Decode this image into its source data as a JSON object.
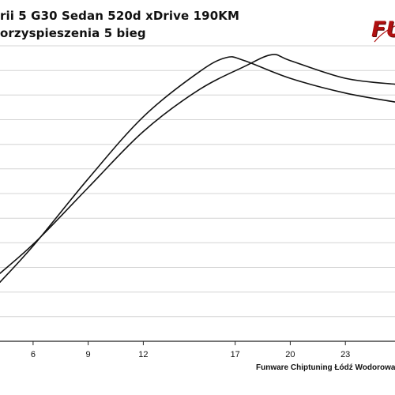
{
  "title": {
    "line1": "rii 5 G30 Sedan 520d xDrive 190KM",
    "line2": "orzyspieszenia 5 bieg"
  },
  "logo": {
    "text": "FU",
    "color": "#b01010"
  },
  "footer": {
    "text": "Funware Chiptuning Łódź Wodorowanie"
  },
  "chart_data": {
    "type": "line",
    "title": "",
    "xlabel": "",
    "ylabel": "",
    "xlim": [
      4.2,
      25.7
    ],
    "ylim": [
      0,
      10
    ],
    "x_ticks": [
      6,
      9,
      12,
      17,
      20,
      23
    ],
    "x_tick_labels": [
      "6",
      "9",
      "12",
      "17",
      "20",
      "23"
    ],
    "y_gridlines": 12,
    "grid": true,
    "legend": "none",
    "line_color": "#111111",
    "series": [
      {
        "values": [
          [
            4.2,
            2.0
          ],
          [
            6.1,
            3.3
          ],
          [
            9.0,
            5.5
          ],
          [
            12.0,
            7.6
          ],
          [
            15.0,
            9.1
          ],
          [
            16.5,
            9.6
          ],
          [
            17.5,
            9.5
          ],
          [
            20.0,
            8.9
          ],
          [
            23.0,
            8.4
          ],
          [
            25.7,
            8.1
          ]
        ]
      },
      {
        "values": [
          [
            4.2,
            2.3
          ],
          [
            6.2,
            3.4
          ],
          [
            9.0,
            5.2
          ],
          [
            12.0,
            7.1
          ],
          [
            15.0,
            8.5
          ],
          [
            17.5,
            9.3
          ],
          [
            19.0,
            9.7
          ],
          [
            20.0,
            9.5
          ],
          [
            23.0,
            8.9
          ],
          [
            25.7,
            8.7
          ]
        ]
      }
    ]
  }
}
